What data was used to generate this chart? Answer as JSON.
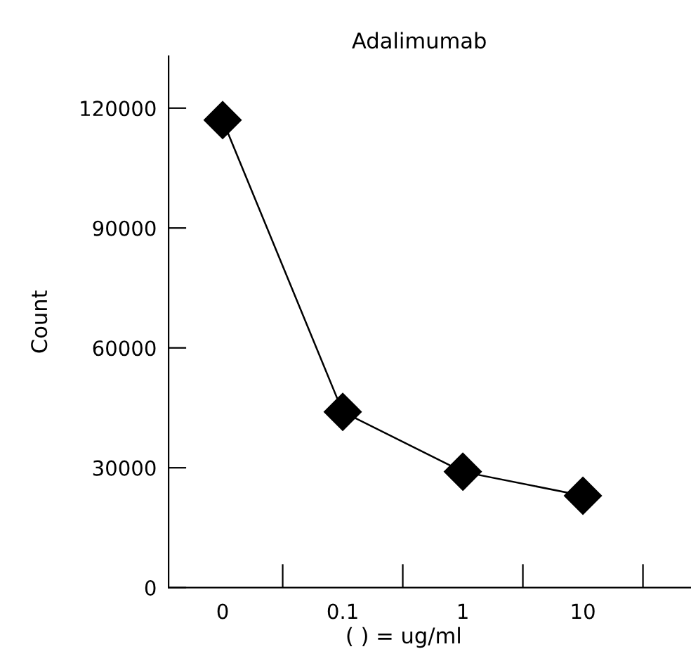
{
  "chart_data": {
    "type": "line",
    "title": "Adalimumab",
    "xlabel": "( ) = ug/ml",
    "ylabel": "Count",
    "categories": [
      "0",
      "0.1",
      "1",
      "10"
    ],
    "series": [
      {
        "color": "#000000",
        "values": [
          117000,
          44000,
          29000,
          23000
        ]
      }
    ],
    "ylim": [
      0,
      133000
    ],
    "yticks": [
      0,
      30000,
      60000,
      90000,
      120000
    ],
    "marker": "diamond",
    "line_style": "solid",
    "grid": false
  }
}
